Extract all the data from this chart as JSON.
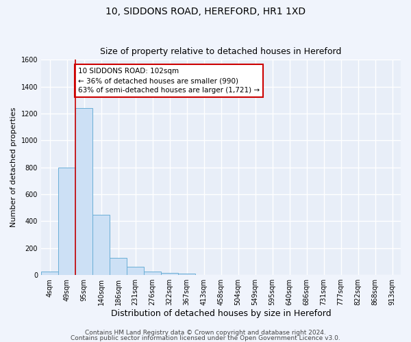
{
  "title": "10, SIDDONS ROAD, HEREFORD, HR1 1XD",
  "subtitle": "Size of property relative to detached houses in Hereford",
  "xlabel": "Distribution of detached houses by size in Hereford",
  "ylabel": "Number of detached properties",
  "bin_labels": [
    "4sqm",
    "49sqm",
    "95sqm",
    "140sqm",
    "186sqm",
    "231sqm",
    "276sqm",
    "322sqm",
    "367sqm",
    "413sqm",
    "458sqm",
    "504sqm",
    "549sqm",
    "595sqm",
    "640sqm",
    "686sqm",
    "731sqm",
    "777sqm",
    "822sqm",
    "868sqm",
    "913sqm"
  ],
  "bar_heights": [
    25,
    800,
    1240,
    450,
    130,
    60,
    25,
    15,
    12,
    0,
    0,
    0,
    0,
    0,
    0,
    0,
    0,
    0,
    0,
    0,
    0
  ],
  "bar_color": "#cce0f5",
  "bar_edge_color": "#6aaed6",
  "red_line_color": "#cc0000",
  "annotation_text": "10 SIDDONS ROAD: 102sqm\n← 36% of detached houses are smaller (990)\n63% of semi-detached houses are larger (1,721) →",
  "annotation_box_color": "#ffffff",
  "annotation_box_edge_color": "#cc0000",
  "ylim": [
    0,
    1600
  ],
  "yticks": [
    0,
    200,
    400,
    600,
    800,
    1000,
    1200,
    1400,
    1600
  ],
  "footer1": "Contains HM Land Registry data © Crown copyright and database right 2024.",
  "footer2": "Contains public sector information licensed under the Open Government Licence v3.0.",
  "bg_color": "#f0f4fc",
  "plot_bg_color": "#e8eef8",
  "grid_color": "#ffffff",
  "title_fontsize": 10,
  "subtitle_fontsize": 9,
  "xlabel_fontsize": 9,
  "ylabel_fontsize": 8,
  "tick_fontsize": 7,
  "annotation_fontsize": 7.5,
  "footer_fontsize": 6.5
}
